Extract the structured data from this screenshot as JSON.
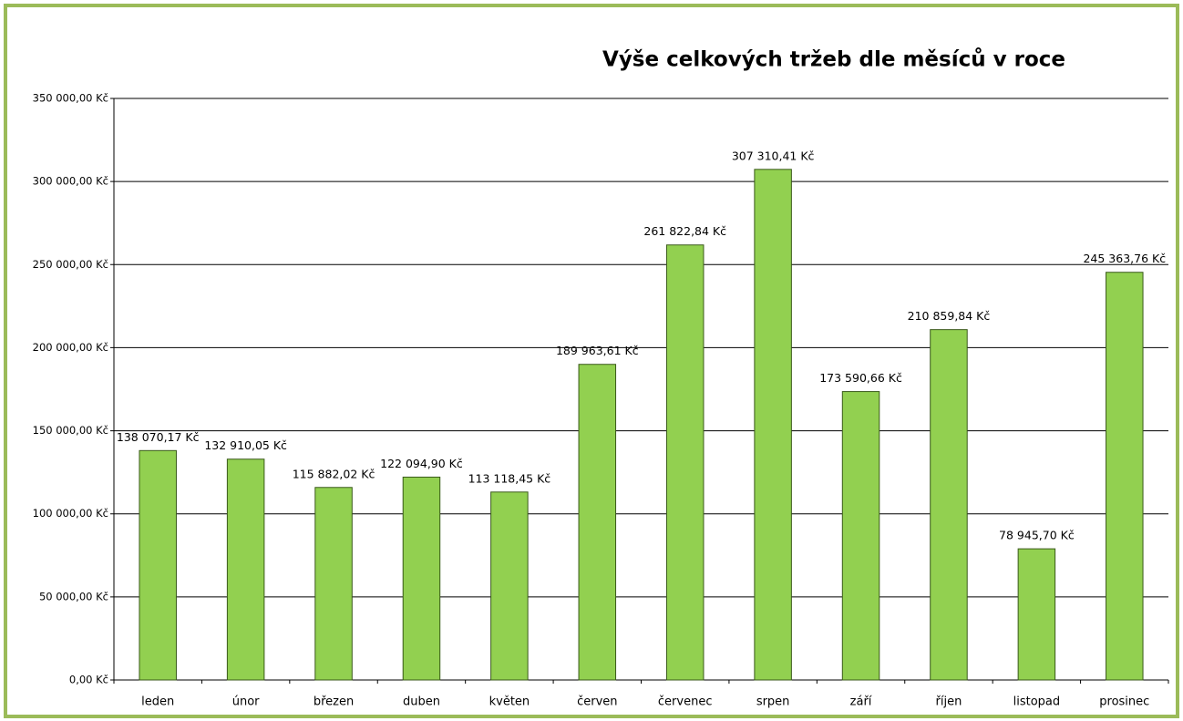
{
  "chart_data": {
    "type": "bar",
    "title": "Výše celkových tržeb dle měsíců v roce",
    "categories": [
      "leden",
      "únor",
      "březen",
      "duben",
      "květen",
      "červen",
      "červenec",
      "srpen",
      "září",
      "říjen",
      "listopad",
      "prosinec"
    ],
    "values": [
      138070.17,
      132910.05,
      115882.02,
      122094.9,
      113118.45,
      189963.61,
      261822.84,
      307310.41,
      173590.66,
      210859.84,
      78945.7,
      245363.76
    ],
    "value_labels": [
      "138 070,17 Kč",
      "132 910,05 Kč",
      "115 882,02 Kč",
      "122 094,90 Kč",
      "113 118,45 Kč",
      "189 963,61 Kč",
      "261 822,84 Kč",
      "307 310,41 Kč",
      "173 590,66 Kč",
      "210 859,84 Kč",
      "78 945,70 Kč",
      "245 363,76 Kč"
    ],
    "color": "#92d050",
    "ylim": [
      0,
      350000
    ],
    "yticks": [
      {
        "value": 0,
        "label": "0,00 Kč"
      },
      {
        "value": 50000,
        "label": "50 000,00 Kč"
      },
      {
        "value": 100000,
        "label": "100 000,00 Kč"
      },
      {
        "value": 150000,
        "label": "150 000,00 Kč"
      },
      {
        "value": 200000,
        "label": "200 000,00 Kč"
      },
      {
        "value": 250000,
        "label": "250 000,00 Kč"
      },
      {
        "value": 300000,
        "label": "300 000,00 Kč"
      },
      {
        "value": 350000,
        "label": "350 000,00 Kč"
      }
    ],
    "grid": true
  }
}
